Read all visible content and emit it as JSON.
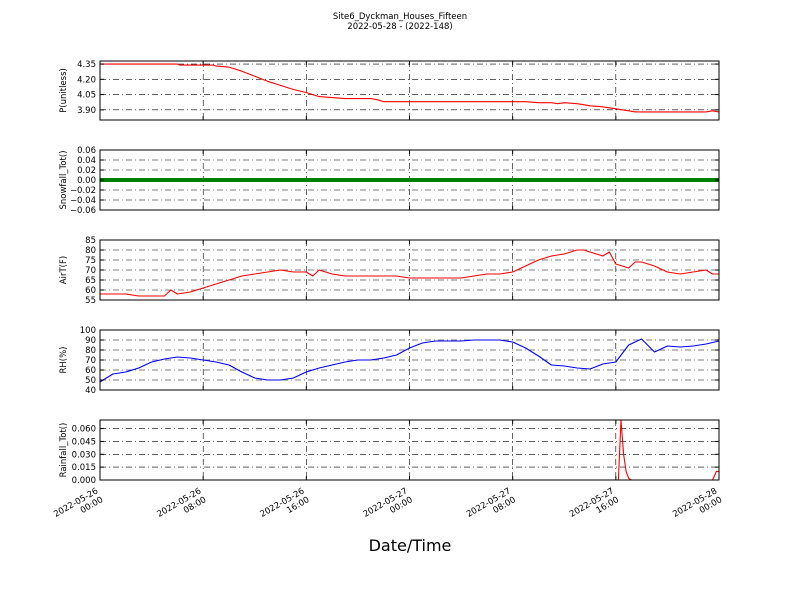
{
  "figure": {
    "title_line1": "Site6_Dyckman_Houses_Fifteen",
    "title_line2": "2022-05-28 - (2022-148)",
    "xlabel": "Date/Time",
    "x_ticks": [
      {
        "t": 0,
        "line1": "2022-05-26",
        "line2": "00:00"
      },
      {
        "t": 8,
        "line1": "2022-05-26",
        "line2": "08:00"
      },
      {
        "t": 16,
        "line1": "2022-05-26",
        "line2": "16:00"
      },
      {
        "t": 24,
        "line1": "2022-05-27",
        "line2": "00:00"
      },
      {
        "t": 32,
        "line1": "2022-05-27",
        "line2": "08:00"
      },
      {
        "t": 40,
        "line1": "2022-05-27",
        "line2": "16:00"
      },
      {
        "t": 48,
        "line1": "2022-05-28",
        "line2": "00:00"
      }
    ]
  },
  "chart_data": [
    {
      "type": "line",
      "ylabel": "P(unitless)",
      "color": "#ff0000",
      "xlim": [
        "2022-05-26 00:00",
        "2022-05-28 00:00"
      ],
      "ylim": [
        3.8,
        4.38
      ],
      "yticks": [
        3.9,
        4.05,
        4.2,
        4.35
      ],
      "ytick_labels": [
        "3.90",
        "4.05",
        "4.20",
        "4.35"
      ],
      "grid": true,
      "x_hours": [
        0,
        1,
        2,
        3,
        4,
        5,
        6,
        6.2,
        7,
        8,
        8.8,
        9,
        10,
        10.5,
        11,
        12,
        13,
        14,
        15,
        16,
        16.5,
        17,
        18,
        19,
        20,
        21,
        21.5,
        22,
        23,
        24,
        25,
        26,
        27,
        28,
        29,
        30,
        31,
        32,
        33,
        34,
        35,
        35.5,
        36,
        37,
        37.5,
        38,
        39,
        40,
        40.5,
        41,
        41.5,
        42,
        43,
        44,
        45,
        46,
        47,
        47.5,
        48
      ],
      "values": [
        4.35,
        4.35,
        4.35,
        4.35,
        4.35,
        4.35,
        4.35,
        4.34,
        4.34,
        4.34,
        4.34,
        4.33,
        4.32,
        4.3,
        4.28,
        4.23,
        4.18,
        4.14,
        4.1,
        4.07,
        4.05,
        4.03,
        4.02,
        4.01,
        4.01,
        4.01,
        4.0,
        3.98,
        3.98,
        3.98,
        3.98,
        3.98,
        3.98,
        3.98,
        3.98,
        3.98,
        3.98,
        3.98,
        3.98,
        3.97,
        3.97,
        3.96,
        3.97,
        3.96,
        3.95,
        3.94,
        3.93,
        3.91,
        3.9,
        3.89,
        3.88,
        3.88,
        3.88,
        3.88,
        3.88,
        3.88,
        3.88,
        3.89,
        3.88
      ]
    },
    {
      "type": "line",
      "ylabel": "Snowfall_Tot()",
      "color": "#008000",
      "xlim": [
        "2022-05-26 00:00",
        "2022-05-28 00:00"
      ],
      "ylim": [
        -0.06,
        0.06
      ],
      "yticks": [
        -0.06,
        -0.04,
        -0.02,
        0.0,
        0.02,
        0.04,
        0.06
      ],
      "ytick_labels": [
        "−0.06",
        "−0.04",
        "−0.02",
        "0.00",
        "0.02",
        "0.04",
        "0.06"
      ],
      "grid": true,
      "x_hours": [
        0,
        48
      ],
      "values": [
        0,
        0
      ]
    },
    {
      "type": "line",
      "ylabel": "AirT(F)",
      "color": "#ff0000",
      "xlim": [
        "2022-05-26 00:00",
        "2022-05-28 00:00"
      ],
      "ylim": [
        55,
        85
      ],
      "yticks": [
        55,
        60,
        65,
        70,
        75,
        80,
        85
      ],
      "ytick_labels": [
        "55",
        "60",
        "65",
        "70",
        "75",
        "80",
        "85"
      ],
      "grid": true,
      "x_hours": [
        0,
        1,
        2,
        3,
        4,
        5,
        5.5,
        6,
        7,
        8,
        9,
        10,
        11,
        12,
        13,
        14,
        15,
        16,
        16.5,
        17,
        18,
        19,
        20,
        21,
        22,
        23,
        24,
        25,
        26,
        27,
        28,
        29,
        30,
        31,
        32,
        33,
        34,
        35,
        36,
        37,
        37.5,
        38,
        39,
        39.5,
        40,
        41,
        41.5,
        42,
        42.5,
        43,
        44,
        45,
        46,
        47,
        47.5,
        48
      ],
      "values": [
        58,
        58,
        58,
        57,
        57,
        57,
        60,
        58,
        59,
        61,
        63,
        65,
        67,
        68,
        69,
        70,
        69,
        69,
        67,
        70,
        68,
        67,
        67,
        67,
        67,
        67,
        66,
        66,
        66,
        66,
        66,
        67,
        68,
        68,
        69,
        72,
        75,
        77,
        78,
        80,
        80,
        79,
        77,
        79,
        73,
        71,
        74,
        74,
        73,
        72,
        69,
        68,
        69,
        70,
        68,
        68
      ]
    },
    {
      "type": "line",
      "ylabel": "RH(%)",
      "color": "#0000ff",
      "xlim": [
        "2022-05-26 00:00",
        "2022-05-28 00:00"
      ],
      "ylim": [
        40,
        100
      ],
      "yticks": [
        40,
        50,
        60,
        70,
        80,
        90,
        100
      ],
      "ytick_labels": [
        "40",
        "50",
        "60",
        "70",
        "80",
        "90",
        "100"
      ],
      "grid": true,
      "x_hours": [
        0,
        1,
        2,
        3,
        4,
        5,
        6,
        7,
        8,
        9,
        10,
        11,
        12,
        13,
        14,
        15,
        16,
        17,
        18,
        19,
        20,
        21,
        22,
        23,
        24,
        25,
        26,
        27,
        28,
        29,
        30,
        31,
        32,
        33,
        34,
        35,
        36,
        37,
        38,
        39,
        40,
        41,
        42,
        43,
        44,
        45,
        46,
        47,
        48
      ],
      "values": [
        48,
        56,
        58,
        62,
        68,
        71,
        73,
        72,
        70,
        68,
        65,
        58,
        52,
        50,
        50,
        52,
        58,
        62,
        65,
        68,
        70,
        70,
        72,
        75,
        82,
        87,
        89,
        89,
        89,
        90,
        90,
        90,
        88,
        82,
        74,
        65,
        64,
        62,
        61,
        66,
        68,
        85,
        91,
        78,
        84,
        83,
        84,
        86,
        89
      ]
    },
    {
      "type": "line",
      "ylabel": "Rainfall_Tot()",
      "color": "#ff0000",
      "xlim": [
        "2022-05-26 00:00",
        "2022-05-28 00:00"
      ],
      "ylim": [
        0,
        0.07
      ],
      "yticks": [
        0.0,
        0.015,
        0.03,
        0.045,
        0.06
      ],
      "ytick_labels": [
        "0.000",
        "0.015",
        "0.030",
        "0.045",
        "0.060"
      ],
      "grid": true,
      "x_hours": [
        0,
        40.2,
        40.4,
        40.6,
        40.8,
        41,
        41.2,
        42,
        47.5,
        47.8,
        48
      ],
      "values": [
        0,
        0,
        0.07,
        0.03,
        0.01,
        0.002,
        0,
        0,
        0,
        0.01,
        0.01
      ]
    }
  ]
}
